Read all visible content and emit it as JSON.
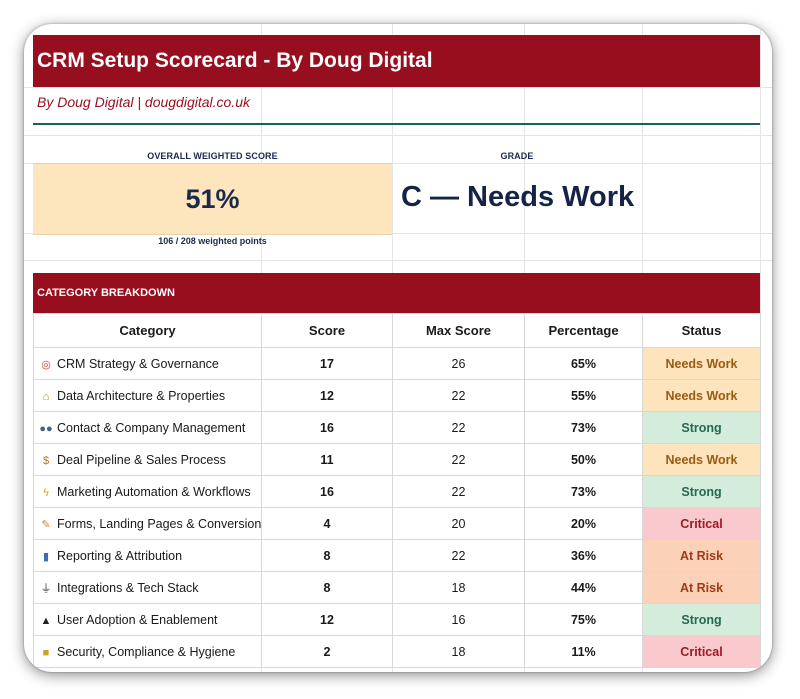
{
  "header": {
    "title": "CRM Setup Scorecard - By Doug Digital",
    "byline": "By Doug Digital  |  dougdigital.co.uk"
  },
  "summary": {
    "overall_label": "OVERALL WEIGHTED SCORE",
    "overall_value": "51%",
    "points": "106 / 208 weighted points",
    "grade_label": "GRADE",
    "grade_value": "C — Needs Work"
  },
  "breakdown": {
    "section_title": "CATEGORY BREAKDOWN",
    "headers": [
      "Category",
      "Score",
      "Max Score",
      "Percentage",
      "Status"
    ],
    "rows": [
      {
        "icon": "target-icon",
        "glyph": "◎",
        "icon_color": "#d23a2a",
        "category": "CRM Strategy & Governance",
        "score": "17",
        "max": "26",
        "pct": "65%",
        "status": "Needs Work"
      },
      {
        "icon": "architecture-icon",
        "glyph": "⌂",
        "icon_color": "#c9853a",
        "category": "Data Architecture & Properties",
        "score": "12",
        "max": "22",
        "pct": "55%",
        "status": "Needs Work"
      },
      {
        "icon": "people-icon",
        "glyph": "●●",
        "icon_color": "#4a5f7a",
        "category": "Contact & Company Management",
        "score": "16",
        "max": "22",
        "pct": "73%",
        "status": "Strong"
      },
      {
        "icon": "money-bag-icon",
        "glyph": "$",
        "icon_color": "#b07a1f",
        "category": "Deal Pipeline & Sales Process",
        "score": "11",
        "max": "22",
        "pct": "50%",
        "status": "Needs Work"
      },
      {
        "icon": "lightning-icon",
        "glyph": "ϟ",
        "icon_color": "#e0a800",
        "category": "Marketing Automation & Workflows",
        "score": "16",
        "max": "22",
        "pct": "73%",
        "status": "Strong"
      },
      {
        "icon": "memo-icon",
        "glyph": "✎",
        "icon_color": "#c4892e",
        "category": "Forms, Landing Pages & Conversion",
        "score": "4",
        "max": "20",
        "pct": "20%",
        "status": "Critical"
      },
      {
        "icon": "bar-chart-icon",
        "glyph": "▮",
        "icon_color": "#3d6db5",
        "category": "Reporting & Attribution",
        "score": "8",
        "max": "22",
        "pct": "36%",
        "status": "At Risk"
      },
      {
        "icon": "plug-icon",
        "glyph": "⏚",
        "icon_color": "#333333",
        "category": "Integrations & Tech Stack",
        "score": "8",
        "max": "18",
        "pct": "44%",
        "status": "At Risk"
      },
      {
        "icon": "graduation-cap-icon",
        "glyph": "▲",
        "icon_color": "#222222",
        "category": "User Adoption & Enablement",
        "score": "12",
        "max": "16",
        "pct": "75%",
        "status": "Strong"
      },
      {
        "icon": "lock-icon",
        "glyph": "■",
        "icon_color": "#c9a227",
        "category": "Security, Compliance & Hygiene",
        "score": "2",
        "max": "18",
        "pct": "11%",
        "status": "Critical"
      }
    ]
  },
  "status_colors": {
    "Needs Work": {
      "bg": "#fde4bd",
      "fg": "#9b5a12"
    },
    "Strong": {
      "bg": "#d3ecdc",
      "fg": "#236a55"
    },
    "Critical": {
      "bg": "#f9c9cd",
      "fg": "#a0182a"
    },
    "At Risk": {
      "bg": "#fbd2b7",
      "fg": "#a13a18"
    }
  }
}
